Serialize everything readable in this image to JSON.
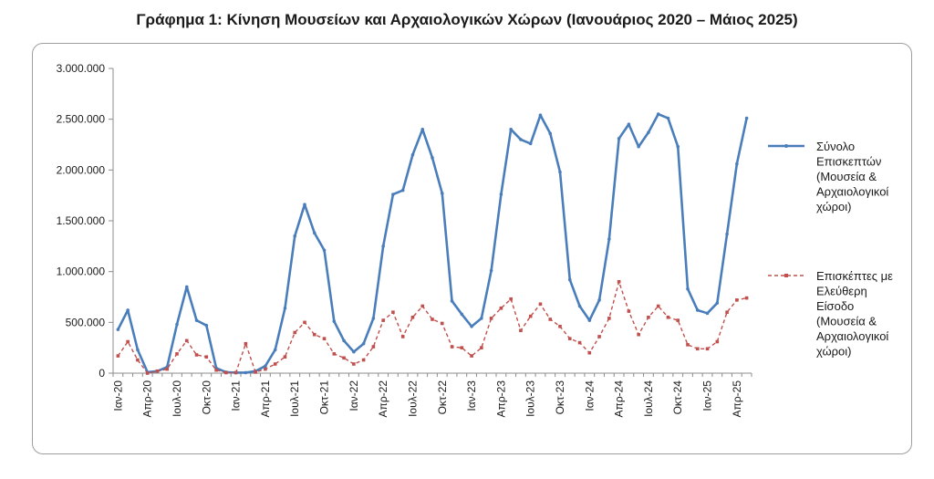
{
  "title": "Γράφημα 1: Κίνηση Μουσείων και Αρχαιολογικών Χώρων (Ιανουάριος 2020 – Μάιος 2025)",
  "chart_data": {
    "type": "line",
    "title": "Γράφημα 1: Κίνηση Μουσείων και Αρχαιολογικών Χώρων (Ιανουάριος 2020 – Μάιος 2025)",
    "xlabel": "",
    "ylabel": "",
    "ylim": [
      0,
      3000000
    ],
    "yticks": [
      0,
      500000,
      1000000,
      1500000,
      2000000,
      2500000,
      3000000
    ],
    "ytick_labels": [
      "0",
      "500.000",
      "1.000.000",
      "1.500.000",
      "2.000.000",
      "2.500.000",
      "3.000.000"
    ],
    "grid": false,
    "legend_position": "right",
    "x": [
      "Ιαν-20",
      "Φεβ-20",
      "Μαρ-20",
      "Απρ-20",
      "Μαϊ-20",
      "Ιουν-20",
      "Ιουλ-20",
      "Αυγ-20",
      "Σεπ-20",
      "Οκτ-20",
      "Νοε-20",
      "Δεκ-20",
      "Ιαν-21",
      "Φεβ-21",
      "Μαρ-21",
      "Απρ-21",
      "Μαϊ-21",
      "Ιουν-21",
      "Ιουλ-21",
      "Αυγ-21",
      "Σεπ-21",
      "Οκτ-21",
      "Νοε-21",
      "Δεκ-21",
      "Ιαν-22",
      "Φεβ-22",
      "Μαρ-22",
      "Απρ-22",
      "Μαϊ-22",
      "Ιουν-22",
      "Ιουλ-22",
      "Αυγ-22",
      "Σεπ-22",
      "Οκτ-22",
      "Νοε-22",
      "Δεκ-22",
      "Ιαν-23",
      "Φεβ-23",
      "Μαρ-23",
      "Απρ-23",
      "Μαϊ-23",
      "Ιουν-23",
      "Ιουλ-23",
      "Αυγ-23",
      "Σεπ-23",
      "Οκτ-23",
      "Νοε-23",
      "Δεκ-23",
      "Ιαν-24",
      "Φεβ-24",
      "Μαρ-24",
      "Απρ-24",
      "Μαϊ-24",
      "Ιουν-24",
      "Ιουλ-24",
      "Αυγ-24",
      "Σεπ-24",
      "Οκτ-24",
      "Νοε-24",
      "Δεκ-24",
      "Ιαν-25",
      "Φεβ-25",
      "Μαρ-25",
      "Απρ-25",
      "Μαϊ-25"
    ],
    "xtick_labels": [
      {
        "index": 0,
        "label": "Ιαν-20"
      },
      {
        "index": 3,
        "label": "Απρ-20"
      },
      {
        "index": 6,
        "label": "Ιουλ-20"
      },
      {
        "index": 9,
        "label": "Οκτ-20"
      },
      {
        "index": 12,
        "label": "Ιαν-21"
      },
      {
        "index": 15,
        "label": "Απρ-21"
      },
      {
        "index": 18,
        "label": "Ιουλ-21"
      },
      {
        "index": 21,
        "label": "Οκτ-21"
      },
      {
        "index": 24,
        "label": "Ιαν-22"
      },
      {
        "index": 27,
        "label": "Απρ-22"
      },
      {
        "index": 30,
        "label": "Ιουλ-22"
      },
      {
        "index": 33,
        "label": "Οκτ-22"
      },
      {
        "index": 36,
        "label": "Ιαν-23"
      },
      {
        "index": 39,
        "label": "Απρ-23"
      },
      {
        "index": 42,
        "label": "Ιουλ-23"
      },
      {
        "index": 45,
        "label": "Οκτ-23"
      },
      {
        "index": 48,
        "label": "Ιαν-24"
      },
      {
        "index": 51,
        "label": "Απρ-24"
      },
      {
        "index": 54,
        "label": "Ιουλ-24"
      },
      {
        "index": 57,
        "label": "Οκτ-24"
      },
      {
        "index": 60,
        "label": "Ιαν-25"
      },
      {
        "index": 63,
        "label": "Απρ-25"
      }
    ],
    "series": [
      {
        "name": "Σύνολο Επισκεπτών (Μουσεία & Αρχαιολογικοί χώροι)",
        "legend_lines": [
          "Σύνολο",
          "Επισκεπτών",
          "(Μουσεία &",
          "Αρχαιολογικοί",
          "χώροι)"
        ],
        "color": "#4a7ebb",
        "style": "solid",
        "values": [
          430000,
          620000,
          230000,
          10000,
          20000,
          60000,
          480000,
          850000,
          520000,
          470000,
          50000,
          10000,
          5000,
          5000,
          20000,
          70000,
          230000,
          640000,
          1350000,
          1660000,
          1380000,
          1210000,
          510000,
          320000,
          210000,
          290000,
          540000,
          1250000,
          1760000,
          1800000,
          2150000,
          2400000,
          2120000,
          1770000,
          710000,
          580000,
          460000,
          540000,
          1010000,
          1760000,
          2400000,
          2300000,
          2260000,
          2540000,
          2360000,
          1980000,
          920000,
          660000,
          520000,
          720000,
          1320000,
          2310000,
          2450000,
          2230000,
          2370000,
          2550000,
          2510000,
          2230000,
          830000,
          620000,
          590000,
          690000,
          1370000,
          2060000,
          2510000
        ]
      },
      {
        "name": "Επισκέπτες με Ελεύθερη Είσοδο (Μουσεία & Αρχαιολογικοί χώροι)",
        "legend_lines": [
          "Επισκέπτες με",
          "Ελεύθερη",
          "Είσοδο",
          "(Μουσεία &",
          "Αρχαιολογικοί",
          "χώροι)"
        ],
        "color": "#c0504d",
        "style": "dashed",
        "values": [
          170000,
          310000,
          130000,
          0,
          20000,
          40000,
          190000,
          320000,
          180000,
          160000,
          30000,
          5000,
          5000,
          290000,
          10000,
          40000,
          90000,
          160000,
          400000,
          500000,
          380000,
          340000,
          190000,
          150000,
          90000,
          130000,
          260000,
          520000,
          600000,
          360000,
          550000,
          660000,
          530000,
          490000,
          260000,
          250000,
          170000,
          250000,
          540000,
          640000,
          730000,
          420000,
          560000,
          680000,
          530000,
          460000,
          340000,
          300000,
          200000,
          360000,
          540000,
          900000,
          610000,
          380000,
          550000,
          660000,
          550000,
          520000,
          280000,
          240000,
          240000,
          310000,
          600000,
          720000,
          740000
        ]
      }
    ]
  }
}
